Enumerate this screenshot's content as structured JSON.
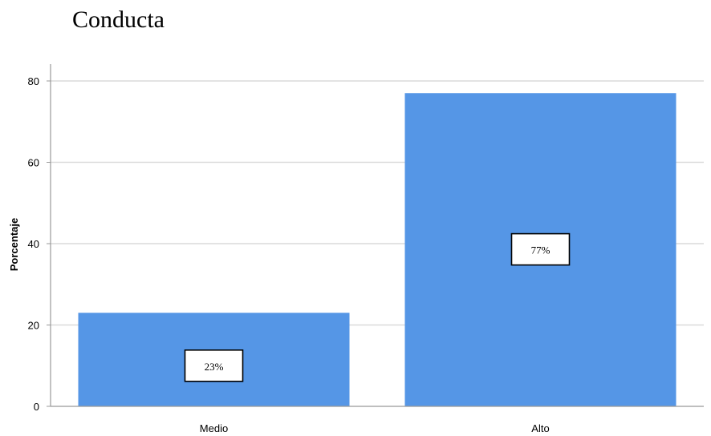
{
  "chart_data": {
    "type": "bar",
    "title": "Conducta",
    "categories": [
      "Medio",
      "Alto"
    ],
    "values": [
      23,
      77
    ],
    "data_labels": [
      "23%",
      "77%"
    ],
    "xlabel": "",
    "ylabel": "Porcentaje",
    "ylim": [
      0,
      80
    ],
    "yticks": [
      "0",
      "20",
      "40",
      "60",
      "80"
    ],
    "grid": true,
    "colors": {
      "bar": "#5596E6",
      "grid": "#DADADA",
      "axis": "#999999"
    }
  }
}
